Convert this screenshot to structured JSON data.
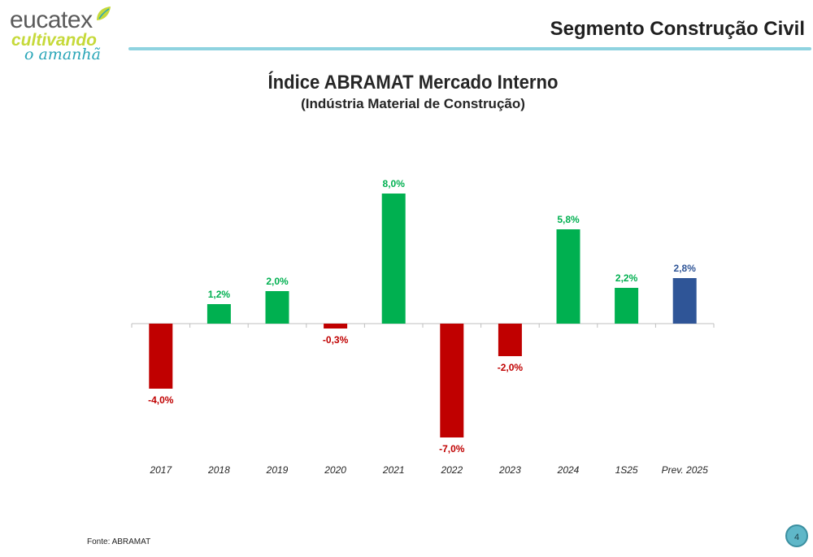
{
  "header": {
    "logo_brand": "eucatex",
    "logo_tagline_1": "cultivando",
    "logo_tagline_2": "o amanhã",
    "title": "Segmento Construção Civil"
  },
  "footer": {
    "source": "Fonte: ABRAMAT",
    "page_number": "4"
  },
  "colors": {
    "positive": "#00b050",
    "negative": "#c00000",
    "forecast": "#2f5597"
  },
  "chart_data": {
    "type": "bar",
    "title": "Índice ABRAMAT Mercado Interno",
    "subtitle": "(Indústria Material de Construção)",
    "xlabel": "",
    "ylabel": "",
    "ylim": [
      -7.0,
      8.0
    ],
    "categories": [
      "2017",
      "2018",
      "2019",
      "2020",
      "2021",
      "2022",
      "2023",
      "2024",
      "1S25",
      "Prev. 2025"
    ],
    "values": [
      -4.0,
      1.2,
      2.0,
      -0.3,
      8.0,
      -7.0,
      -2.0,
      5.8,
      2.2,
      2.8
    ],
    "labels": [
      "-4,0%",
      "1,2%",
      "2,0%",
      "-0,3%",
      "8,0%",
      "-7,0%",
      "-2,0%",
      "5,8%",
      "2,2%",
      "2,8%"
    ],
    "forecast_index": 9
  }
}
